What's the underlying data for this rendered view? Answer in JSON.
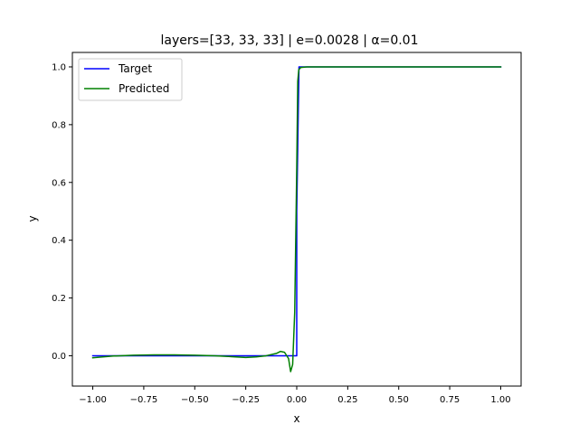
{
  "chart_data": {
    "type": "line",
    "title": "layers=[33, 33, 33] | e=0.0028 | α=0.01",
    "xlabel": "x",
    "ylabel": "y",
    "xlim": [
      -1.1,
      1.1
    ],
    "ylim": [
      -0.105,
      1.05
    ],
    "xticks": [
      -1.0,
      -0.75,
      -0.5,
      -0.25,
      0.0,
      0.25,
      0.5,
      0.75,
      1.0
    ],
    "xtick_labels": [
      "−1.00",
      "−0.75",
      "−0.50",
      "−0.25",
      "0.00",
      "0.25",
      "0.50",
      "0.75",
      "1.00"
    ],
    "yticks": [
      0.0,
      0.2,
      0.4,
      0.6,
      0.8,
      1.0
    ],
    "ytick_labels": [
      "0.0",
      "0.2",
      "0.4",
      "0.6",
      "0.8",
      "1.0"
    ],
    "grid": false,
    "legend": {
      "position": "upper-left",
      "entries": [
        "Target",
        "Predicted"
      ]
    },
    "series": [
      {
        "name": "Target",
        "color": "#0000ff",
        "x": [
          -1.0,
          0.0,
          0.0,
          0.011,
          1.0
        ],
        "y": [
          0.0,
          0.0,
          0.5,
          1.0,
          1.0
        ]
      },
      {
        "name": "Predicted",
        "color": "#008000",
        "x": [
          -1.0,
          -0.9,
          -0.8,
          -0.7,
          -0.6,
          -0.5,
          -0.4,
          -0.3,
          -0.25,
          -0.2,
          -0.15,
          -0.1,
          -0.08,
          -0.06,
          -0.04,
          -0.03,
          -0.02,
          -0.01,
          0.0,
          0.005,
          0.01,
          0.02,
          0.05,
          0.1,
          0.3,
          0.6,
          1.0
        ],
        "y": [
          -0.007,
          -0.001,
          0.002,
          0.003,
          0.003,
          0.002,
          0.0,
          -0.004,
          -0.006,
          -0.004,
          0.0,
          0.008,
          0.015,
          0.012,
          -0.01,
          -0.055,
          -0.03,
          0.15,
          0.65,
          0.95,
          0.99,
          0.998,
          1.0,
          1.0,
          1.0,
          1.0,
          1.0
        ]
      }
    ]
  }
}
